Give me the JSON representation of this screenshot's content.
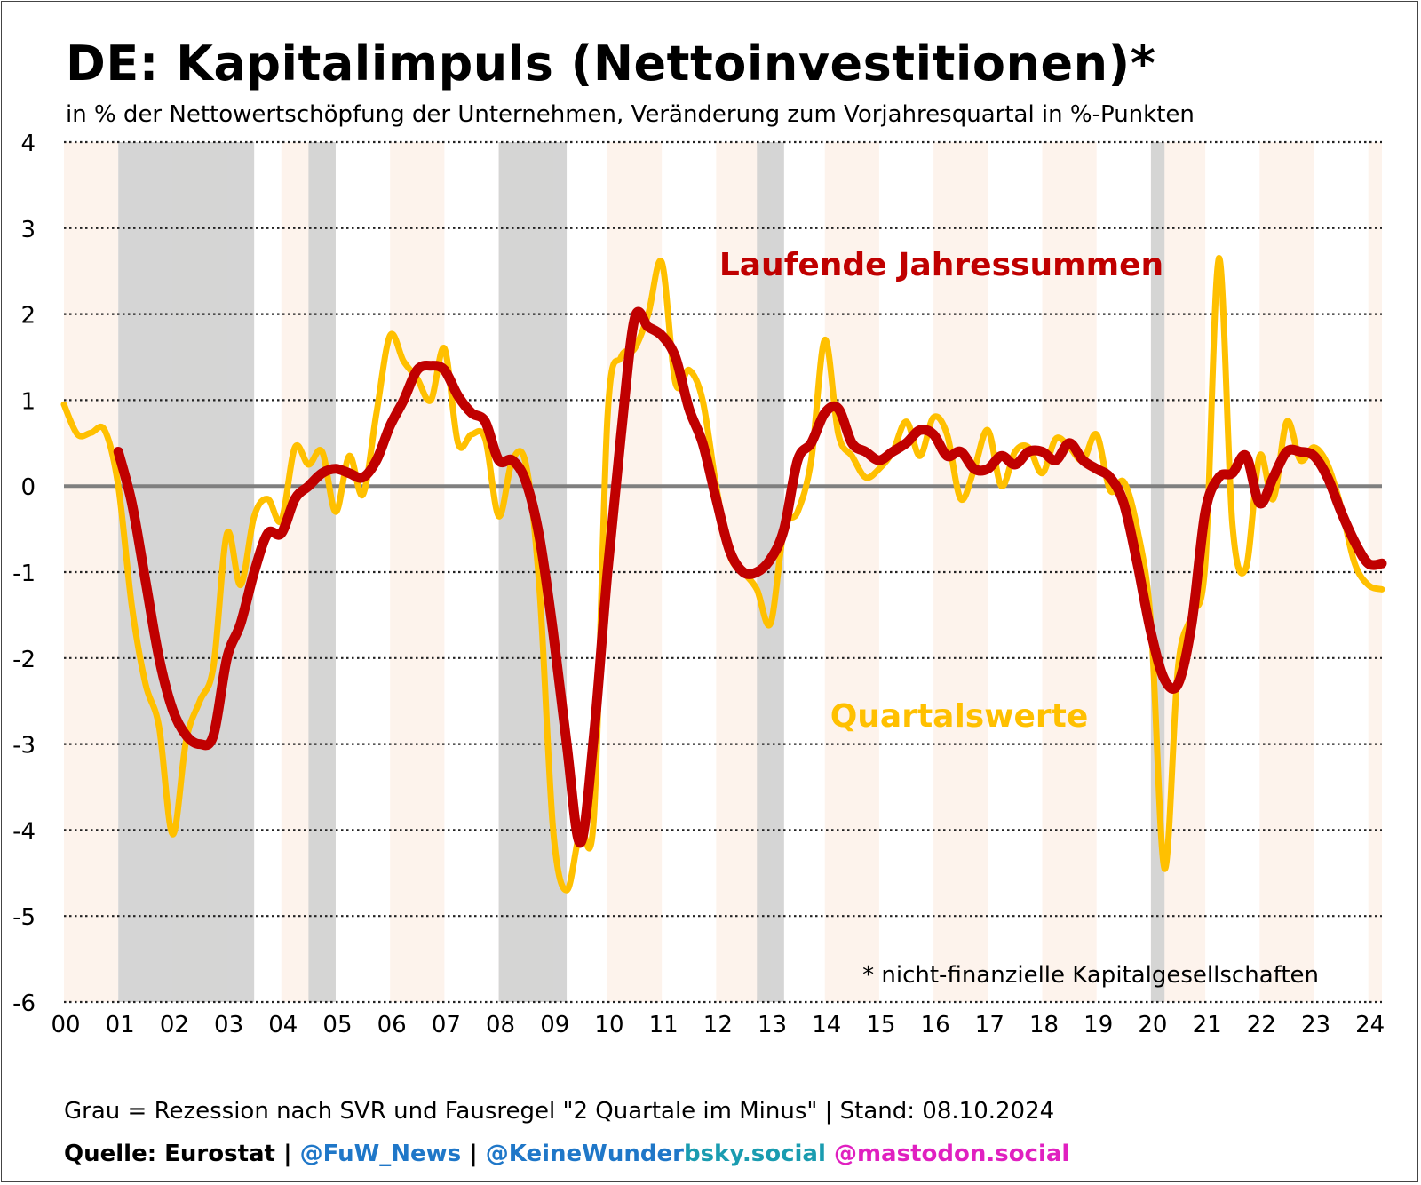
{
  "title": "DE: Kapitalimpuls (Nettoinvestitionen)*",
  "subtitle": "in % der Nettowertschöpfung der Unternehmen, Veränderung zum Vorjahresquartal in %-Punkten",
  "footnote": "* nicht-finanzielle Kapitalgesellschaften",
  "footer": {
    "recession_note": "Grau = Rezession nach SVR und Fausregel \"2 Quartale im Minus\"",
    "separator": "|",
    "stand": "Stand: 08.10.2024",
    "source": "Quelle: Eurostat",
    "handle_x": "@FuW_News",
    "handle_bsky_user": "@KeineWunder",
    "handle_bsky_domain": "bsky.social",
    "handle_mastodon": "@mastodon.social",
    "colors": {
      "x": "#1f77c8",
      "bsky": "#1a9cb0",
      "mastodon": "#e020c0"
    }
  },
  "chart_data": {
    "type": "line",
    "title": "DE: Kapitalimpuls (Nettoinvestitionen)*",
    "ylim": [
      -6,
      4
    ],
    "yticks": [
      "4",
      "3",
      "2",
      "1",
      "0",
      "-1",
      "-2",
      "-3",
      "-4",
      "-5",
      "-6"
    ],
    "xlim": [
      2000.0,
      2024.25
    ],
    "xtick_labels": [
      "00",
      "01",
      "02",
      "03",
      "04",
      "05",
      "06",
      "07",
      "08",
      "09",
      "10",
      "11",
      "12",
      "13",
      "14",
      "15",
      "16",
      "17",
      "18",
      "19",
      "20",
      "21",
      "22",
      "23",
      "24"
    ],
    "grid": "horizontal dotted",
    "colors": {
      "quarterly": "#ffc000",
      "annual": "#c00000",
      "zero_line": "#7f7f7f",
      "recession": "#d3d3d3",
      "year_band": "#fdf3ec"
    },
    "recessions": [
      [
        2001.0,
        2003.5
      ],
      [
        2004.5,
        2005.0
      ],
      [
        2008.0,
        2009.25
      ],
      [
        2012.75,
        2013.25
      ],
      [
        2020.0,
        2020.25
      ]
    ],
    "series": [
      {
        "name": "Quartalswerte",
        "x": [
          2000.0,
          2000.25,
          2000.5,
          2000.75,
          2001.0,
          2001.25,
          2001.5,
          2001.75,
          2002.0,
          2002.25,
          2002.5,
          2002.75,
          2003.0,
          2003.25,
          2003.5,
          2003.75,
          2004.0,
          2004.25,
          2004.5,
          2004.75,
          2005.0,
          2005.25,
          2005.5,
          2005.75,
          2006.0,
          2006.25,
          2006.5,
          2006.75,
          2007.0,
          2007.25,
          2007.5,
          2007.75,
          2008.0,
          2008.25,
          2008.5,
          2008.75,
          2009.0,
          2009.25,
          2009.5,
          2009.75,
          2010.0,
          2010.25,
          2010.5,
          2010.75,
          2011.0,
          2011.25,
          2011.5,
          2011.75,
          2012.0,
          2012.25,
          2012.5,
          2012.75,
          2013.0,
          2013.25,
          2013.5,
          2013.75,
          2014.0,
          2014.25,
          2014.5,
          2014.75,
          2015.0,
          2015.25,
          2015.5,
          2015.75,
          2016.0,
          2016.25,
          2016.5,
          2016.75,
          2017.0,
          2017.25,
          2017.5,
          2017.75,
          2018.0,
          2018.25,
          2018.5,
          2018.75,
          2019.0,
          2019.25,
          2019.5,
          2019.75,
          2020.0,
          2020.25,
          2020.5,
          2020.75,
          2021.0,
          2021.25,
          2021.5,
          2021.75,
          2022.0,
          2022.25,
          2022.5,
          2022.75,
          2023.0,
          2023.25,
          2023.5,
          2023.75,
          2024.0,
          2024.25
        ],
        "y": [
          0.95,
          0.6,
          0.62,
          0.65,
          0.0,
          -1.4,
          -2.3,
          -2.8,
          -4.05,
          -2.95,
          -2.5,
          -2.1,
          -0.55,
          -1.15,
          -0.35,
          -0.15,
          -0.4,
          0.45,
          0.25,
          0.4,
          -0.3,
          0.35,
          -0.1,
          0.85,
          1.75,
          1.45,
          1.25,
          1.0,
          1.6,
          0.5,
          0.6,
          0.55,
          -0.35,
          0.3,
          0.25,
          -1.2,
          -4.0,
          -4.7,
          -4.0,
          -3.85,
          0.8,
          1.5,
          1.6,
          2.0,
          2.6,
          1.2,
          1.35,
          1.0,
          0.0,
          -0.8,
          -1.0,
          -1.2,
          -1.6,
          -0.5,
          -0.3,
          0.3,
          1.7,
          0.6,
          0.35,
          0.1,
          0.2,
          0.4,
          0.75,
          0.35,
          0.8,
          0.6,
          -0.15,
          0.2,
          0.65,
          0.0,
          0.4,
          0.45,
          0.15,
          0.55,
          0.45,
          0.3,
          0.6,
          -0.05,
          0.05,
          -0.5,
          -1.6,
          -4.45,
          -2.1,
          -1.5,
          -0.9,
          2.65,
          -0.45,
          -0.95,
          0.35,
          -0.15,
          0.75,
          0.3,
          0.45,
          0.25,
          -0.25,
          -0.9,
          -1.15,
          -1.2
        ]
      },
      {
        "name": "Laufende Jahressummen",
        "x": [
          2001.0,
          2001.25,
          2001.5,
          2001.75,
          2002.0,
          2002.25,
          2002.5,
          2002.75,
          2003.0,
          2003.25,
          2003.5,
          2003.75,
          2004.0,
          2004.25,
          2004.5,
          2004.75,
          2005.0,
          2005.25,
          2005.5,
          2005.75,
          2006.0,
          2006.25,
          2006.5,
          2006.75,
          2007.0,
          2007.25,
          2007.5,
          2007.75,
          2008.0,
          2008.25,
          2008.5,
          2008.75,
          2009.0,
          2009.25,
          2009.5,
          2009.75,
          2010.0,
          2010.25,
          2010.5,
          2010.75,
          2011.0,
          2011.25,
          2011.5,
          2011.75,
          2012.0,
          2012.25,
          2012.5,
          2012.75,
          2013.0,
          2013.25,
          2013.5,
          2013.75,
          2014.0,
          2014.25,
          2014.5,
          2014.75,
          2015.0,
          2015.25,
          2015.5,
          2015.75,
          2016.0,
          2016.25,
          2016.5,
          2016.75,
          2017.0,
          2017.25,
          2017.5,
          2017.75,
          2018.0,
          2018.25,
          2018.5,
          2018.75,
          2019.0,
          2019.25,
          2019.5,
          2019.75,
          2020.0,
          2020.25,
          2020.5,
          2020.75,
          2021.0,
          2021.25,
          2021.5,
          2021.75,
          2022.0,
          2022.25,
          2022.5,
          2022.75,
          2023.0,
          2023.25,
          2023.5,
          2023.75,
          2024.0,
          2024.25
        ],
        "y": [
          0.4,
          -0.2,
          -1.1,
          -2.0,
          -2.6,
          -2.9,
          -3.0,
          -2.9,
          -2.0,
          -1.6,
          -1.0,
          -0.55,
          -0.55,
          -0.15,
          0.0,
          0.15,
          0.2,
          0.15,
          0.1,
          0.3,
          0.7,
          1.0,
          1.35,
          1.4,
          1.35,
          1.05,
          0.85,
          0.75,
          0.3,
          0.3,
          0.05,
          -0.6,
          -1.7,
          -3.0,
          -4.15,
          -2.9,
          -1.0,
          0.6,
          1.95,
          1.85,
          1.75,
          1.5,
          0.9,
          0.5,
          -0.15,
          -0.75,
          -1.0,
          -1.0,
          -0.85,
          -0.5,
          0.3,
          0.5,
          0.85,
          0.9,
          0.5,
          0.4,
          0.3,
          0.4,
          0.5,
          0.65,
          0.6,
          0.35,
          0.4,
          0.2,
          0.2,
          0.35,
          0.25,
          0.4,
          0.4,
          0.3,
          0.5,
          0.3,
          0.2,
          0.1,
          -0.2,
          -0.9,
          -1.7,
          -2.25,
          -2.3,
          -1.6,
          -0.3,
          0.1,
          0.15,
          0.35,
          -0.2,
          0.1,
          0.4,
          0.4,
          0.35,
          0.1,
          -0.3,
          -0.65,
          -0.9,
          -0.9
        ]
      }
    ],
    "annotations": [
      {
        "text": "Laufende Jahressummen",
        "series": "Laufende Jahressummen"
      },
      {
        "text": "Quartalswerte",
        "series": "Quartalswerte"
      }
    ]
  }
}
